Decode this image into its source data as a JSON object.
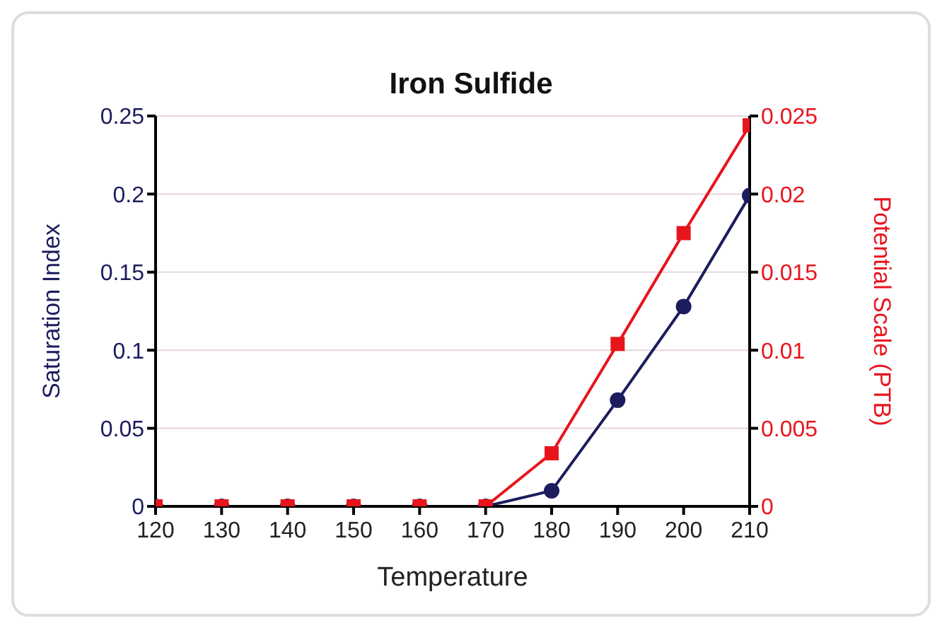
{
  "chart_data": {
    "type": "line",
    "title": "Iron Sulfide",
    "xlabel": "Temperature",
    "ylabel": "Saturation Index",
    "y2label": "Potential Scale (PTB)",
    "x": [
      120,
      130,
      140,
      150,
      160,
      170,
      180,
      190,
      200,
      210
    ],
    "xlim": [
      120,
      210
    ],
    "xticks": [
      120,
      130,
      140,
      150,
      160,
      170,
      180,
      190,
      200,
      210
    ],
    "ylim": [
      0,
      0.25
    ],
    "yticks": [
      0,
      0.05,
      0.1,
      0.15,
      0.2,
      0.25
    ],
    "y2lim": [
      0,
      0.025
    ],
    "y2ticks": [
      0,
      0.005,
      0.01,
      0.015,
      0.02,
      0.025
    ],
    "grid": "y",
    "legend": false,
    "series": [
      {
        "color": "#1c1c5e",
        "marker": "circle",
        "values": [
          0,
          0,
          0,
          0,
          0,
          0,
          0.01,
          0.068,
          0.128,
          0.199
        ]
      },
      {
        "color": "#e8141c",
        "marker": "square",
        "axis": "y2",
        "values": [
          0,
          0,
          0,
          0,
          0,
          0,
          0.0034,
          0.0104,
          0.0175,
          0.0244
        ]
      }
    ]
  }
}
